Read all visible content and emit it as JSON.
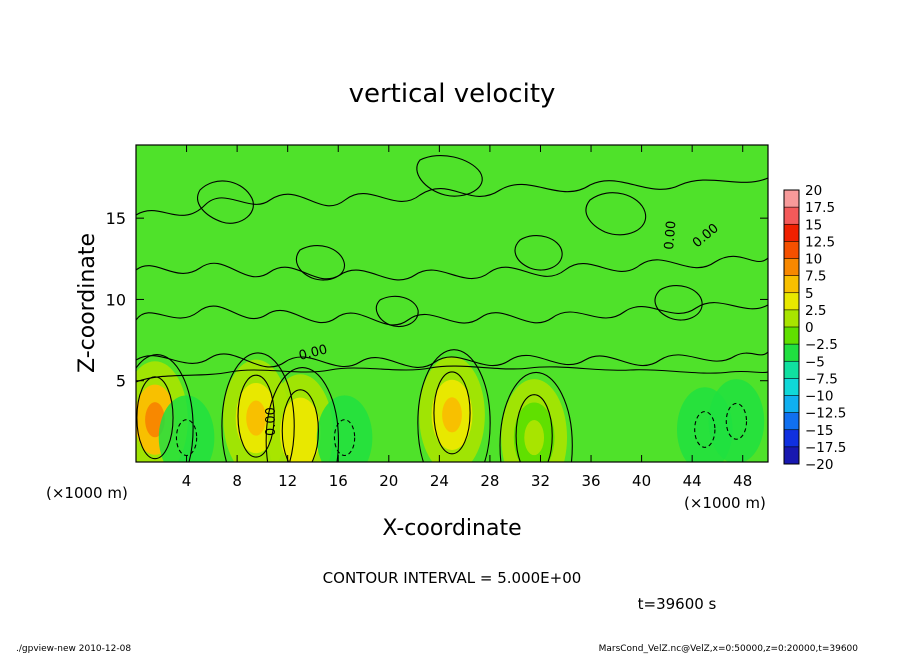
{
  "chart_data": {
    "type": "heatmap",
    "title": "vertical velocity",
    "xlabel": "X-coordinate",
    "ylabel": "Z-coordinate",
    "x_units_left": "(×1000 m)",
    "x_units_right": "(×1000 m)",
    "xlim": [
      0,
      50
    ],
    "ylim": [
      0,
      19.5
    ],
    "x_ticks": [
      "4",
      "8",
      "12",
      "16",
      "20",
      "24",
      "28",
      "32",
      "36",
      "40",
      "44",
      "48"
    ],
    "y_ticks": [
      "5",
      "10",
      "15"
    ],
    "contour_labels": [
      "0.00",
      "0.00",
      "0.00",
      "0.00"
    ],
    "contour_interval": "CONTOUR INTERVAL = 5.000E+00",
    "time_label": "t=39600 s",
    "colorbar": {
      "levels": [
        "20",
        "17.5",
        "15",
        "12.5",
        "10",
        "7.5",
        "5",
        "2.5",
        "0",
        "−2.5",
        "−5",
        "−7.5",
        "−10",
        "−12.5",
        "−15",
        "−17.5",
        "−20"
      ],
      "colors": [
        "#f79a9a",
        "#f45a5a",
        "#f02000",
        "#f45000",
        "#f88800",
        "#f8c000",
        "#e8e800",
        "#a8e400",
        "#60e000",
        "#20e040",
        "#10e0a0",
        "#10d8d8",
        "#10b0f0",
        "#1070f0",
        "#1030e0",
        "#1818b0",
        "#7000c0"
      ]
    },
    "updrafts": [
      {
        "x": 1.5,
        "z": 2.6,
        "w": 9
      },
      {
        "x": 9.5,
        "z": 2.7,
        "w": 8
      },
      {
        "x": 13.0,
        "z": 1.8,
        "w": 6
      },
      {
        "x": 25.0,
        "z": 2.9,
        "w": 8
      },
      {
        "x": 31.5,
        "z": 1.5,
        "w": 3
      }
    ],
    "downdrafts": [
      {
        "x": 4.0,
        "z": 1.5,
        "w": -4
      },
      {
        "x": 16.5,
        "z": 1.5,
        "w": -3
      },
      {
        "x": 45.0,
        "z": 2.0,
        "w": -5
      },
      {
        "x": 47.5,
        "z": 2.5,
        "w": -5
      }
    ]
  },
  "footer": {
    "left": "./gpview-new  2010-12-08",
    "right": "MarsCond_VelZ.nc@VelZ,x=0:50000,z=0:20000,t=39600"
  }
}
